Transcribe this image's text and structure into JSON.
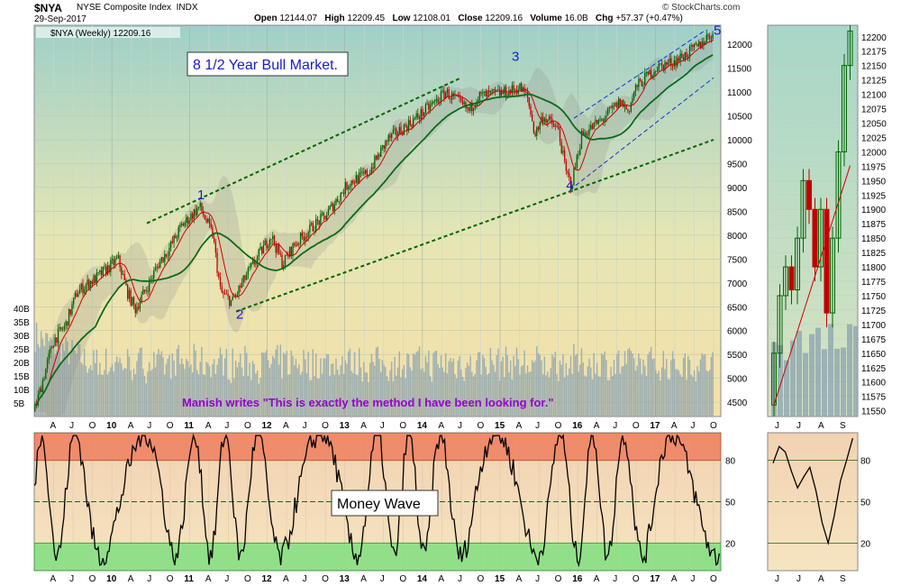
{
  "header": {
    "symbol": "$NYA",
    "name": "NYSE Composite Index",
    "exchange": "INDX",
    "date": "29-Sep-2017",
    "open_label": "Open",
    "open": "12144.07",
    "high_label": "High",
    "high": "12209.45",
    "low_label": "Low",
    "low": "12108.01",
    "close_label": "Close",
    "close": "12209.16",
    "volume_label": "Volume",
    "volume": "16.0B",
    "chg_label": "Chg",
    "chg": "+57.37 (+0.47%)",
    "credit": "© StockCharts.com"
  },
  "colors": {
    "up": "#006400",
    "down": "#c00000",
    "ma_short": "#d00000",
    "ma_long": "#0a6a1a",
    "volume": "#8fa6b0",
    "trend_green": "#006400",
    "trend_blue": "#1530d0",
    "money_wave": "#000000",
    "overbought": "#ee8060",
    "oversold": "#80e080",
    "wave_labels": "#1a1acc",
    "annotation": "#9900cc"
  },
  "chart_data": [
    {
      "type": "candlestick",
      "legend": "$NYA (Weekly) 12209.16",
      "title": "8 1/2 Year Bull Market.",
      "annotation": "Manish writes \"This is exactly the method I have been looking for.\"",
      "ylim": [
        4200,
        12400
      ],
      "y_ticks": [
        4500,
        5000,
        5500,
        6000,
        6500,
        7000,
        7500,
        8000,
        8500,
        9000,
        9500,
        10000,
        10500,
        11000,
        11500,
        12000
      ],
      "volume_ticks": [
        "5B",
        "10B",
        "15B",
        "20B",
        "25B",
        "30B",
        "35B",
        "40B"
      ],
      "volume_range_B": [
        0,
        44
      ],
      "x_ticks": [
        "A",
        "J",
        "O",
        "10",
        "A",
        "J",
        "O",
        "11",
        "A",
        "J",
        "O",
        "12",
        "A",
        "J",
        "O",
        "13",
        "A",
        "J",
        "O",
        "14",
        "A",
        "J",
        "O",
        "15",
        "A",
        "J",
        "O",
        "16",
        "A",
        "J",
        "O",
        "17",
        "A",
        "J",
        "O"
      ],
      "x_range": [
        2009.2,
        2017.95
      ],
      "price_keypoints": [
        [
          2009.2,
          4300
        ],
        [
          2009.45,
          5800
        ],
        [
          2009.6,
          6100
        ],
        [
          2009.75,
          6800
        ],
        [
          2009.9,
          7000
        ],
        [
          2010.0,
          7100
        ],
        [
          2010.28,
          7500
        ],
        [
          2010.4,
          6800
        ],
        [
          2010.5,
          6450
        ],
        [
          2010.65,
          6900
        ],
        [
          2010.8,
          7400
        ],
        [
          2010.95,
          7750
        ],
        [
          2011.1,
          8200
        ],
        [
          2011.33,
          8600
        ],
        [
          2011.5,
          8000
        ],
        [
          2011.6,
          6800
        ],
        [
          2011.75,
          6600
        ],
        [
          2011.95,
          7200
        ],
        [
          2012.25,
          8000
        ],
        [
          2012.4,
          7400
        ],
        [
          2012.55,
          7800
        ],
        [
          2012.8,
          8200
        ],
        [
          2012.95,
          8400
        ],
        [
          2013.25,
          9100
        ],
        [
          2013.5,
          9300
        ],
        [
          2013.75,
          10000
        ],
        [
          2014.0,
          10300
        ],
        [
          2014.3,
          10700
        ],
        [
          2014.5,
          11000
        ],
        [
          2014.8,
          10600
        ],
        [
          2014.9,
          10900
        ],
        [
          2015.3,
          11000
        ],
        [
          2015.45,
          11100
        ],
        [
          2015.55,
          10900
        ],
        [
          2015.65,
          10100
        ],
        [
          2015.75,
          10500
        ],
        [
          2015.95,
          10200
        ],
        [
          2016.05,
          9300
        ],
        [
          2016.12,
          9050
        ],
        [
          2016.25,
          10100
        ],
        [
          2016.5,
          10400
        ],
        [
          2016.75,
          10800
        ],
        [
          2016.85,
          10600
        ],
        [
          2016.95,
          11100
        ],
        [
          2017.2,
          11500
        ],
        [
          2017.45,
          11650
        ],
        [
          2017.6,
          11800
        ],
        [
          2017.75,
          11950
        ],
        [
          2017.9,
          12209
        ]
      ],
      "wave_labels": [
        {
          "text": "1",
          "x": 2011.3,
          "y": 8750
        },
        {
          "text": "2",
          "x": 2011.8,
          "y": 6250
        },
        {
          "text": "3",
          "x": 2015.35,
          "y": 11650
        },
        {
          "text": "4",
          "x": 2016.05,
          "y": 8950
        },
        {
          "text": "5",
          "x": 2017.95,
          "y": 12200
        }
      ]
    },
    {
      "type": "line",
      "legend": "Money Wave",
      "ylim": [
        0,
        100
      ],
      "y_ticks": [
        20,
        50,
        80
      ],
      "overbought": 80,
      "oversold": 20,
      "x_ticks": [
        "A",
        "J",
        "O",
        "10",
        "A",
        "J",
        "O",
        "11",
        "A",
        "J",
        "O",
        "12",
        "A",
        "J",
        "O",
        "13",
        "A",
        "J",
        "O",
        "14",
        "A",
        "J",
        "O",
        "15",
        "A",
        "J",
        "O",
        "16",
        "A",
        "J",
        "O",
        "17",
        "A",
        "J",
        "O"
      ]
    },
    {
      "type": "candlestick",
      "ylim": [
        11540,
        12220
      ],
      "y_ticks": [
        11550,
        11575,
        11600,
        11625,
        11650,
        11675,
        11700,
        11725,
        11750,
        11775,
        11800,
        11825,
        11850,
        11875,
        11900,
        11925,
        11950,
        11975,
        12000,
        12025,
        12050,
        12075,
        12100,
        12125,
        12150,
        12175,
        12200
      ],
      "x_ticks": [
        "J",
        "J",
        "A",
        "S"
      ],
      "money_wave_ticks": [
        20,
        50,
        80
      ]
    }
  ]
}
